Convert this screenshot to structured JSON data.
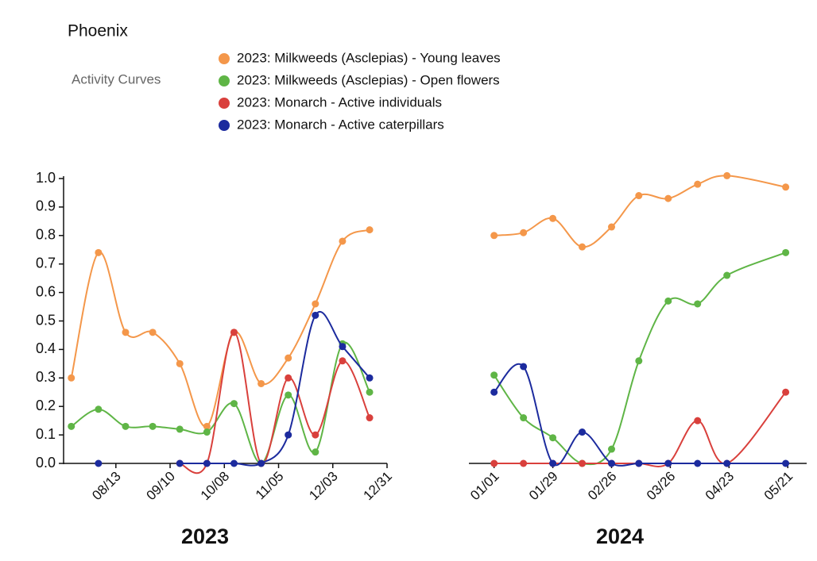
{
  "title": "Phoenix",
  "chart_data": [
    {
      "type": "line",
      "legend_title": "Activity Curves",
      "xlabel": "2023",
      "x": [
        "07/21",
        "08/04",
        "08/18",
        "09/01",
        "09/15",
        "09/29",
        "10/13",
        "10/27",
        "11/10",
        "11/24",
        "12/08",
        "12/22"
      ],
      "xlim": [
        "07/17",
        "12/31"
      ],
      "xticks": [
        "08/13",
        "09/10",
        "10/08",
        "11/05",
        "12/03",
        "12/31"
      ],
      "ylim": [
        0,
        1
      ],
      "yticks": [
        {
          "value": 0,
          "label": "0.0"
        },
        0.1,
        0.2,
        0.3,
        0.4,
        0.5,
        0.6,
        0.7,
        0.8,
        0.9,
        {
          "value": 1,
          "label": "1.0"
        }
      ],
      "series": [
        {
          "name": "2023: Milkweeds (Asclepias) - Young leaves",
          "color": "#f4974a",
          "values": [
            0.3,
            0.74,
            0.46,
            0.46,
            0.35,
            0.13,
            0.46,
            0.28,
            0.37,
            0.56,
            0.78,
            0.82
          ]
        },
        {
          "name": "2023: Milkweeds (Asclepias) - Open flowers",
          "color": "#5fb546",
          "values": [
            0.13,
            0.19,
            0.13,
            0.13,
            0.12,
            0.11,
            0.21,
            0.0,
            0.24,
            0.04,
            0.42,
            0.25
          ]
        },
        {
          "name": "2023: Monarch - Active individuals",
          "color": "#d9403c",
          "values": [
            null,
            null,
            null,
            null,
            0,
            0,
            0.46,
            0,
            0.3,
            0.1,
            0.36,
            0.16
          ]
        },
        {
          "name": "2023: Monarch - Active caterpillars",
          "color": "#1c2b9e",
          "values": [
            null,
            0,
            null,
            null,
            0,
            0,
            0,
            0,
            0.1,
            0.52,
            0.41,
            0.3
          ]
        }
      ]
    },
    {
      "type": "line",
      "xlabel": "2024",
      "x": [
        "01/01",
        "01/15",
        "01/29",
        "02/12",
        "02/26",
        "03/11",
        "03/25",
        "04/08",
        "04/22",
        "05/20"
      ],
      "xlim": [
        "12/20",
        "05/30"
      ],
      "xticks": [
        "01/01",
        "01/29",
        "02/26",
        "03/26",
        "04/23",
        "05/21"
      ],
      "ylim": [
        0,
        1
      ],
      "series": [
        {
          "color": "#f4974a",
          "values": [
            0.8,
            0.81,
            0.86,
            0.76,
            0.83,
            0.94,
            0.93,
            0.98,
            1.01,
            0.97
          ]
        },
        {
          "color": "#5fb546",
          "values": [
            0.31,
            0.16,
            0.09,
            0.0,
            0.05,
            0.36,
            0.57,
            0.56,
            0.66,
            0.74
          ]
        },
        {
          "color": "#d9403c",
          "values": [
            0,
            0,
            0,
            0,
            0,
            0,
            0,
            0.15,
            0,
            0.25
          ]
        },
        {
          "color": "#1c2b9e",
          "values": [
            0.25,
            0.34,
            0,
            0.11,
            0,
            0,
            0,
            0,
            0,
            0
          ]
        }
      ]
    }
  ]
}
